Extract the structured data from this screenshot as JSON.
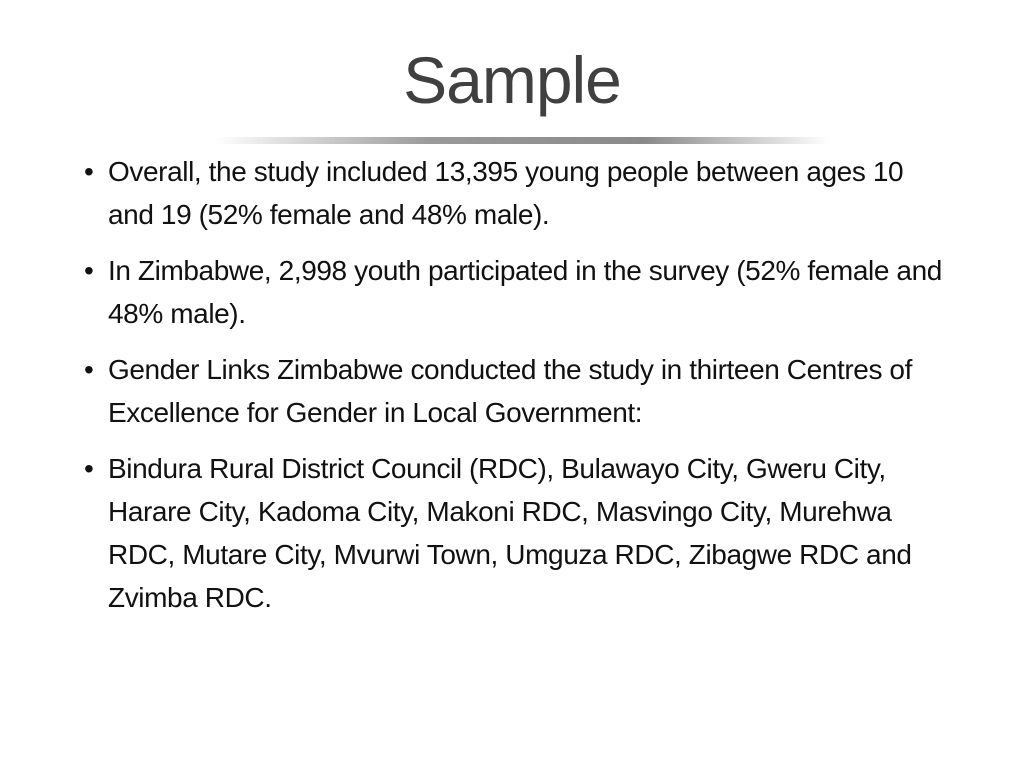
{
  "header": {
    "title": "Sample"
  },
  "bullets": [
    "Overall, the study included 13,395 young people between ages 10 and 19 (52% female and 48% male).",
    "In Zimbabwe, 2,998 youth participated in the survey (52% female and 48% male).",
    "Gender Links Zimbabwe conducted the study in thirteen Centres of Excellence for Gender in Local Government:",
    "Bindura Rural District Council (RDC), Bulawayo City, Gweru City, Harare City, Kadoma City, Makoni RDC, Masvingo City, Murehwa RDC, Mutare City, Mvurwi Town, Umguza RDC, Zibagwe RDC and Zvimba RDC."
  ]
}
